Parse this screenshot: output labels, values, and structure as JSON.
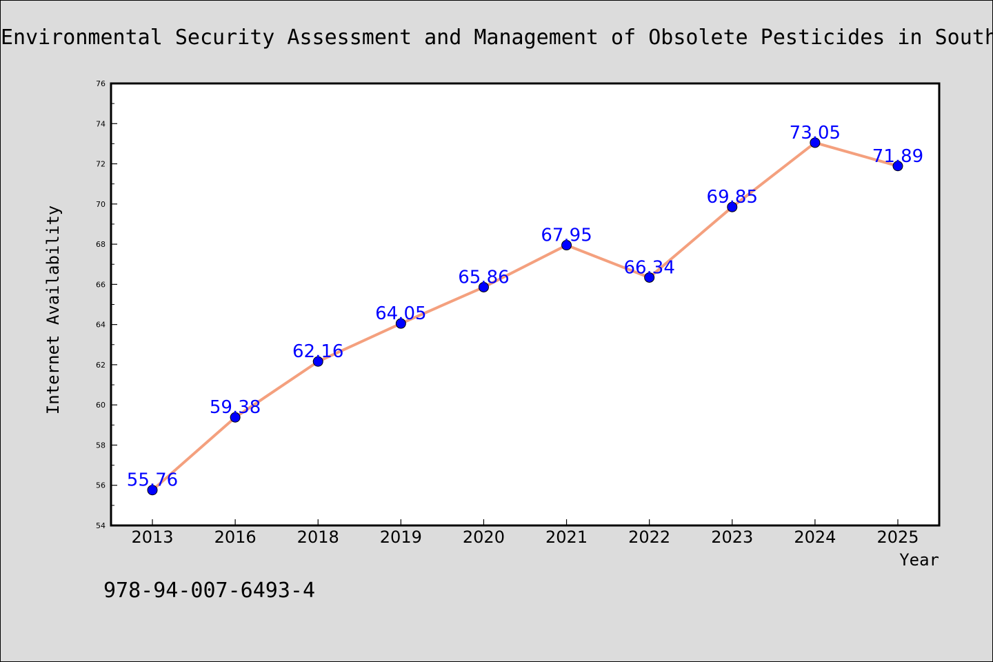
{
  "chart_data": {
    "type": "line",
    "title": "Environmental Security Assessment and Management of Obsolete Pesticides in South",
    "xlabel": "Year",
    "ylabel": "Internet Availability",
    "categories": [
      "2013",
      "2016",
      "2018",
      "2019",
      "2020",
      "2021",
      "2022",
      "2023",
      "2024",
      "2025"
    ],
    "values": [
      55.76,
      59.38,
      62.16,
      64.05,
      65.86,
      67.95,
      66.34,
      69.85,
      73.05,
      71.89
    ],
    "value_labels": [
      "55.76",
      "59.38",
      "62.16",
      "64.05",
      "65.86",
      "67.95",
      "66.34",
      "69.85",
      "73.05",
      "71.89"
    ],
    "ylim": [
      54,
      76
    ],
    "yticks": [
      "54",
      "56",
      "58",
      "60",
      "62",
      "64",
      "66",
      "68",
      "70",
      "72",
      "74",
      "76"
    ],
    "grid": false,
    "legend": "none",
    "line_color": "#f4a07e",
    "marker_color": "#0000ff",
    "label_color": "#0000ff",
    "plot_background": "#ffffff",
    "figure_background": "#dcdcdc"
  },
  "footnote": "978-94-007-6493-4"
}
